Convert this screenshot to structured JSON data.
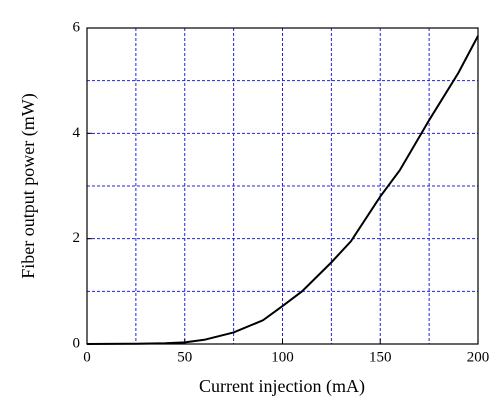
{
  "chart_data": {
    "type": "line",
    "xlabel": "Current injection (mA)",
    "ylabel": "Fiber output power (mW)",
    "x": [
      0,
      25,
      40,
      50,
      60,
      75,
      90,
      100,
      110,
      125,
      135,
      150,
      160,
      175,
      190,
      200
    ],
    "values": [
      0,
      0.005,
      0.015,
      0.03,
      0.08,
      0.22,
      0.45,
      0.72,
      1.0,
      1.55,
      1.95,
      2.8,
      3.3,
      4.25,
      5.15,
      5.85
    ],
    "color": "#000000",
    "xlim": [
      0,
      200
    ],
    "xticks": [
      0,
      50,
      100,
      150,
      200
    ],
    "xminorticks": [
      25,
      75,
      125,
      175
    ],
    "ylim": [
      0,
      6
    ],
    "yticks": [
      0,
      2,
      4,
      6
    ],
    "yminorticks": [
      1,
      3,
      5
    ],
    "grid": true,
    "grid_color": "#2222dd"
  }
}
